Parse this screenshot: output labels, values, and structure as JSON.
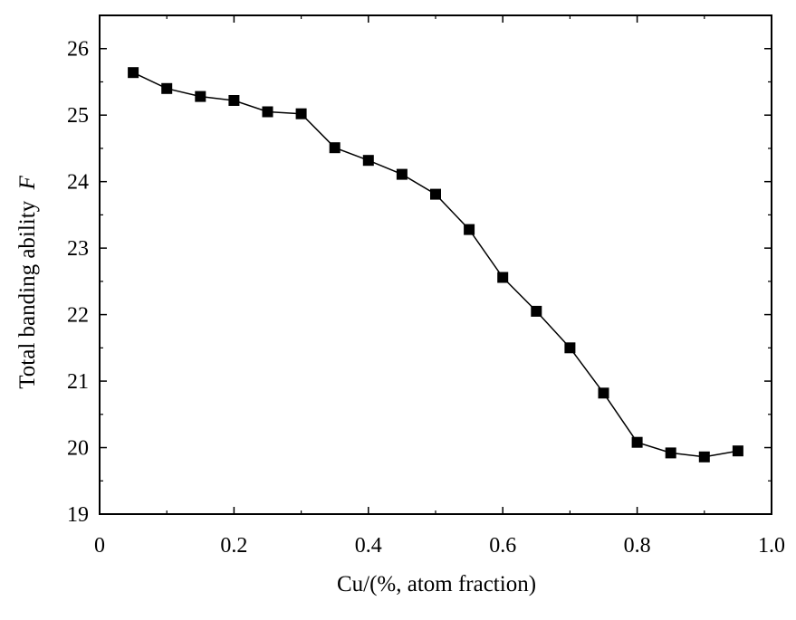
{
  "chart_data": {
    "type": "line",
    "title": "",
    "xlabel": "Cu/(%, atom fraction)",
    "ylabel": "Total banding ability",
    "ylabel_symbol": "F",
    "xlim": [
      0,
      1.0
    ],
    "ylim": [
      19,
      26.5
    ],
    "x_ticks": [
      0,
      0.2,
      0.4,
      0.6,
      0.8,
      1.0
    ],
    "x_tick_labels": [
      "0",
      "0.2",
      "0.4",
      "0.6",
      "0.8",
      "1.0"
    ],
    "y_ticks": [
      19,
      20,
      21,
      22,
      23,
      24,
      25,
      26
    ],
    "y_tick_labels": [
      "19",
      "20",
      "21",
      "22",
      "23",
      "24",
      "25",
      "26"
    ],
    "grid": false,
    "legend": "none",
    "marker": "filled-square",
    "series": [
      {
        "x": [
          0.05,
          0.1,
          0.15,
          0.2,
          0.25,
          0.3,
          0.35,
          0.4,
          0.45,
          0.5,
          0.55,
          0.6,
          0.65,
          0.7,
          0.75,
          0.8,
          0.85,
          0.9,
          0.95
        ],
        "y": [
          25.64,
          25.4,
          25.28,
          25.22,
          25.05,
          25.02,
          24.51,
          24.32,
          24.11,
          23.81,
          23.28,
          22.56,
          22.05,
          21.5,
          20.82,
          20.08,
          19.92,
          19.86,
          19.95
        ],
        "color": "#000000"
      }
    ]
  }
}
